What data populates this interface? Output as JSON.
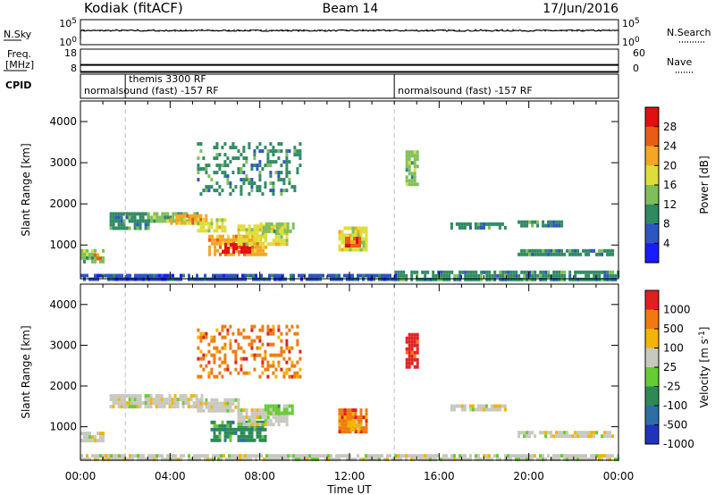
{
  "header": {
    "station": "Kodiak (fitACF)",
    "beam": "Beam 14",
    "date": "17/Jun/2016"
  },
  "chart_data": [
    {
      "type": "line",
      "panel": "noise",
      "left_label": "N.Sky",
      "right_label": "N.Search",
      "left_ticks": [
        "10^5",
        "10^0"
      ],
      "right_ticks": [
        "10^5",
        "10^0"
      ],
      "scale": "log"
    },
    {
      "type": "line",
      "panel": "frequency",
      "left_label_lines": [
        "Freq.",
        "[MHz]"
      ],
      "right_label": "Nave",
      "left_ticks": [
        "18",
        "8"
      ],
      "right_ticks": [
        "60",
        "0"
      ],
      "freq_value_mhz": 10,
      "nave_value": 0
    },
    {
      "type": "table",
      "panel": "cpid",
      "label": "CPID",
      "entries": [
        {
          "text": "normalsound (fast) -157 RF",
          "start_hour": 0
        },
        {
          "text": "themis 3300 RF",
          "start_hour": 2
        },
        {
          "text": "normalsound (fast) -157 RF",
          "start_hour": 14
        }
      ]
    },
    {
      "type": "heatmap",
      "panel": "power",
      "ylabel": "Slant Range [km]",
      "yticks": [
        "1000",
        "2000",
        "3000",
        "4000"
      ],
      "ylim": [
        180,
        4500
      ],
      "xlim_hours": [
        0,
        24
      ],
      "colorbar_label": "Power [dB]",
      "colorbar_ticks": [
        "4",
        "8",
        "12",
        "16",
        "20",
        "24",
        "28"
      ],
      "colorbar_range": [
        0,
        32
      ],
      "colors": [
        "#1a1aff",
        "#2e55c0",
        "#2f8a62",
        "#7fbf5a",
        "#dede3a",
        "#f5a623",
        "#e85d15",
        "#e01010"
      ],
      "blobs": [
        {
          "h0": 0.0,
          "h1": 1.0,
          "r0": 620,
          "r1": 900,
          "level": 3
        },
        {
          "h0": 0.6,
          "h1": 1.0,
          "r0": 700,
          "r1": 800,
          "level": 6
        },
        {
          "h0": 1.3,
          "h1": 3.0,
          "r0": 1450,
          "r1": 1800,
          "level": 2
        },
        {
          "h0": 3.0,
          "h1": 5.2,
          "r0": 1550,
          "r1": 1800,
          "level": 3
        },
        {
          "h0": 4.0,
          "h1": 5.6,
          "r0": 1500,
          "r1": 1750,
          "level": 5
        },
        {
          "h0": 5.2,
          "h1": 6.4,
          "r0": 1350,
          "r1": 1650,
          "level": 4
        },
        {
          "h0": 5.7,
          "h1": 8.3,
          "r0": 800,
          "r1": 1250,
          "level": 5
        },
        {
          "h0": 6.3,
          "h1": 7.5,
          "r0": 800,
          "r1": 1050,
          "level": 7
        },
        {
          "h0": 7.0,
          "h1": 9.2,
          "r0": 1050,
          "r1": 1500,
          "level": 4
        },
        {
          "h0": 8.0,
          "h1": 9.5,
          "r0": 1300,
          "r1": 1550,
          "level": 3
        },
        {
          "h0": 5.2,
          "h1": 9.8,
          "r0": 2200,
          "r1": 3500,
          "level": 2
        },
        {
          "h0": 11.5,
          "h1": 12.8,
          "r0": 850,
          "r1": 1450,
          "level": 4
        },
        {
          "h0": 11.8,
          "h1": 12.5,
          "r0": 950,
          "r1": 1200,
          "level": 6
        },
        {
          "h0": 14.0,
          "h1": 24.0,
          "r0": 180,
          "r1": 380,
          "level": 2
        },
        {
          "h0": 0.0,
          "h1": 14.0,
          "r0": 180,
          "r1": 300,
          "level": 1
        },
        {
          "h0": 16.5,
          "h1": 19.0,
          "r0": 1400,
          "r1": 1550,
          "level": 2
        },
        {
          "h0": 19.5,
          "h1": 23.8,
          "r0": 750,
          "r1": 900,
          "level": 2
        },
        {
          "h0": 19.5,
          "h1": 21.5,
          "r0": 1450,
          "r1": 1600,
          "level": 2
        },
        {
          "h0": 14.5,
          "h1": 15.0,
          "r0": 2500,
          "r1": 3300,
          "level": 3
        }
      ]
    },
    {
      "type": "heatmap",
      "panel": "velocity",
      "ylabel": "Slant Range [km]",
      "yticks": [
        "1000",
        "2000",
        "3000",
        "4000"
      ],
      "ylim": [
        180,
        4500
      ],
      "xlim_hours": [
        0,
        24
      ],
      "xticks": [
        "00:00",
        "04:00",
        "08:00",
        "12:00",
        "16:00",
        "20:00",
        "00:00"
      ],
      "xlabel": "Time UT",
      "colorbar_label": "Velocity [m s^-1]",
      "colorbar_ticks": [
        "1000",
        "500",
        "100",
        "25",
        "-25",
        "-100",
        "-500",
        "-1000"
      ],
      "colors": [
        "#2233bb",
        "#2e6ea6",
        "#2e8a55",
        "#66cc33",
        "#c8c8c0",
        "#f2b500",
        "#f07a10",
        "#e02020"
      ],
      "blobs": [
        {
          "h0": 0.0,
          "h1": 1.0,
          "r0": 620,
          "r1": 880,
          "level": 4
        },
        {
          "h0": 1.3,
          "h1": 5.4,
          "r0": 1450,
          "r1": 1800,
          "level": 4
        },
        {
          "h0": 5.2,
          "h1": 7.0,
          "r0": 1350,
          "r1": 1700,
          "level": 4
        },
        {
          "h0": 5.8,
          "h1": 8.3,
          "r0": 700,
          "r1": 1150,
          "level": 2
        },
        {
          "h0": 7.0,
          "h1": 9.2,
          "r0": 1050,
          "r1": 1450,
          "level": 4
        },
        {
          "h0": 8.2,
          "h1": 9.5,
          "r0": 1300,
          "r1": 1550,
          "level": 3
        },
        {
          "h0": 5.2,
          "h1": 9.8,
          "r0": 2200,
          "r1": 3500,
          "level": 6
        },
        {
          "h0": 11.5,
          "h1": 12.8,
          "r0": 850,
          "r1": 1450,
          "level": 6
        },
        {
          "h0": 11.9,
          "h1": 12.4,
          "r0": 950,
          "r1": 1150,
          "level": 5
        },
        {
          "h0": 0.0,
          "h1": 24.0,
          "r0": 180,
          "r1": 330,
          "level": 4
        },
        {
          "h0": 16.5,
          "h1": 19.0,
          "r0": 1400,
          "r1": 1550,
          "level": 4
        },
        {
          "h0": 19.5,
          "h1": 23.8,
          "r0": 750,
          "r1": 900,
          "level": 4
        },
        {
          "h0": 14.5,
          "h1": 15.0,
          "r0": 2500,
          "r1": 3300,
          "level": 7
        }
      ]
    }
  ]
}
